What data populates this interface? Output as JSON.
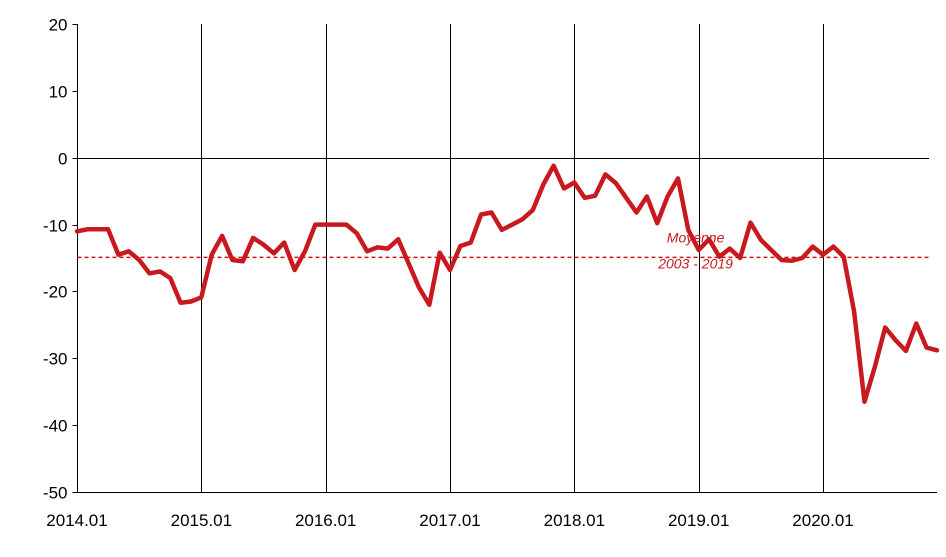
{
  "chart_data": {
    "type": "line",
    "title": "",
    "xlabel": "",
    "ylabel": "",
    "ylim": [
      -50,
      20
    ],
    "yticks": [
      20,
      10,
      0,
      -10,
      -20,
      -30,
      -40,
      -50
    ],
    "xlim": [
      0,
      83
    ],
    "xticks": [
      {
        "label": "2014.01",
        "x": 0
      },
      {
        "label": "2015.01",
        "x": 12
      },
      {
        "label": "2016.01",
        "x": 24
      },
      {
        "label": "2017.01",
        "x": 36
      },
      {
        "label": "2018.01",
        "x": 48
      },
      {
        "label": "2019.01",
        "x": 60
      },
      {
        "label": "2020.01",
        "x": 72
      }
    ],
    "grid": {
      "vertical": true,
      "horizontal": false
    },
    "zero_line": true,
    "series": [
      {
        "color": "#c8191f",
        "x": [
          0,
          1,
          2,
          3,
          4,
          5,
          6,
          7,
          8,
          9,
          10,
          11,
          12,
          13,
          14,
          15,
          16,
          17,
          18,
          19,
          20,
          21,
          22,
          23,
          24,
          25,
          26,
          27,
          28,
          29,
          30,
          31,
          32,
          33,
          34,
          35,
          36,
          37,
          38,
          39,
          40,
          41,
          42,
          43,
          44,
          45,
          46,
          47,
          48,
          49,
          50,
          51,
          52,
          53,
          54,
          55,
          56,
          57,
          58,
          59,
          60,
          61,
          62,
          63,
          64,
          65,
          66,
          67,
          68,
          69,
          70,
          71,
          72,
          73,
          74,
          75,
          76,
          77,
          78,
          79,
          80,
          81,
          82,
          83
        ],
        "values": [
          -11,
          -10.7,
          -10.7,
          -10.7,
          -14.5,
          -14,
          -15.3,
          -17.3,
          -17,
          -18,
          -21.7,
          -21.5,
          -20.9,
          -14.5,
          -11.7,
          -15.3,
          -15.5,
          -12,
          -13,
          -14.3,
          -12.7,
          -16.8,
          -14,
          -10,
          -10,
          -10,
          -10,
          -11.3,
          -14,
          -13.4,
          -13.6,
          -12.2,
          -15.8,
          -19.4,
          -22,
          -14.2,
          -16.8,
          -13.2,
          -12.7,
          -8.5,
          -8.2,
          -10.8,
          -10,
          -9.2,
          -7.8,
          -4,
          -1.2,
          -4.6,
          -3.7,
          -6,
          -5.7,
          -2.5,
          -3.8,
          -6,
          -8.2,
          -5.8,
          -9.8,
          -5.8,
          -3.1,
          -10.8,
          -13.8,
          -12.2,
          -14.8,
          -13.6,
          -15,
          -9.7,
          -12.3,
          -13.8,
          -15.3,
          -15.4,
          -15,
          -13.3,
          -14.5,
          -13.3,
          -14.8,
          -23,
          -36.5,
          -31.3,
          -25.4,
          -27.3,
          -28.9,
          -24.8,
          -28.4,
          -28.8
        ]
      }
    ],
    "reference_line": {
      "value": -14.9,
      "color": "#c8191f",
      "style": "dashed"
    },
    "annotation": {
      "line1": "Moyenne",
      "line2": "2003 - 2019",
      "x": 59.7,
      "y": -13.6
    }
  }
}
